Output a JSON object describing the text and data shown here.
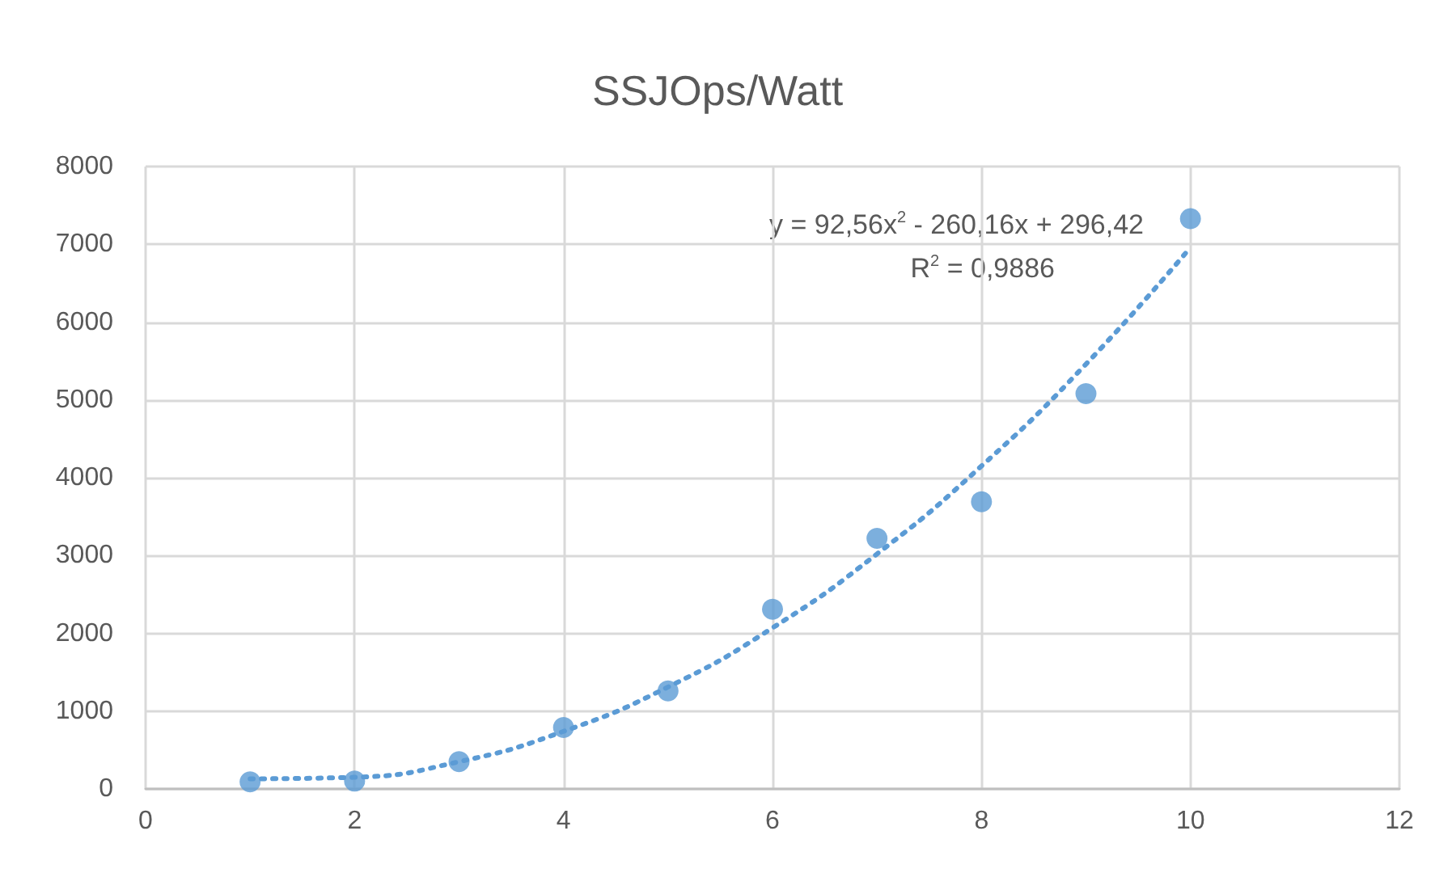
{
  "chart_data": {
    "type": "scatter",
    "title": "SSJOps/Watt",
    "x": [
      1,
      2,
      3,
      4,
      5,
      6,
      7,
      8,
      9,
      10
    ],
    "series": [
      {
        "color": "#5b9bd5",
        "values": [
          90,
          100,
          350,
          790,
          1260,
          2310,
          3220,
          3690,
          5080,
          7330
        ]
      },
      {
        "type": "line",
        "color": "#5b9bd5",
        "line_style": "dotted",
        "marker": "none",
        "x": [
          1,
          2,
          3,
          4,
          5,
          6,
          7,
          8,
          9,
          10
        ],
        "values": [
          130,
          150,
          350,
          740,
          1310,
          2070,
          3020,
          4150,
          5460,
          6960
        ]
      }
    ],
    "marker": "circle",
    "xlim": [
      0,
      12
    ],
    "xticks": [
      0,
      2,
      4,
      6,
      8,
      10,
      12
    ],
    "ylim": [
      0,
      8000
    ],
    "yticks": [
      0,
      1000,
      2000,
      3000,
      4000,
      5000,
      6000,
      7000,
      8000
    ],
    "grid": true,
    "annotations": [
      "y = 92,56x$^{2}$ - 260,16x + 296,42",
      "R$^{2}$ = 0,9886"
    ]
  }
}
